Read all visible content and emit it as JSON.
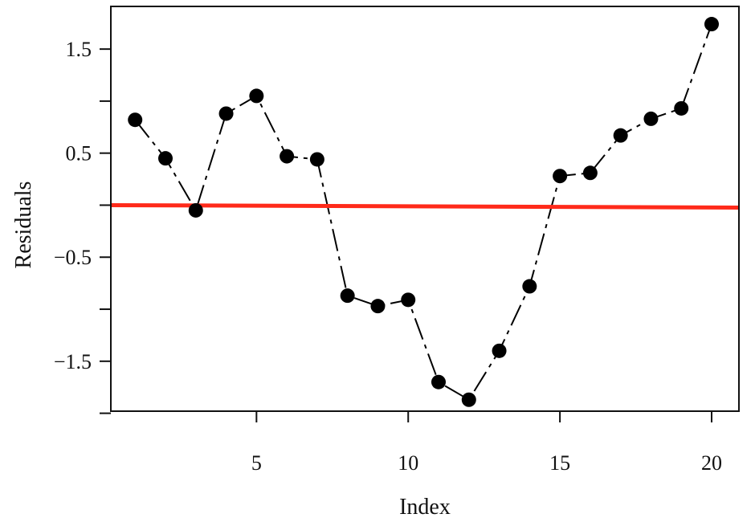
{
  "chart_data": {
    "type": "line",
    "xlabel": "Index",
    "ylabel": "Residuals",
    "xlim": [
      0.2,
      20.9
    ],
    "ylim": [
      -1.98,
      1.91
    ],
    "x_ticks": [
      5,
      10,
      15,
      20
    ],
    "x_tick_labels": [
      "5",
      "10",
      "15",
      "20"
    ],
    "y_ticks": [
      -2,
      -1.5,
      -1,
      -0.5,
      0,
      0.5,
      1,
      1.5
    ],
    "y_tick_labels": [
      "",
      "−1.5",
      "",
      "−0.5",
      "",
      "0.5",
      "",
      "1.5"
    ],
    "grid": false,
    "legend": "none",
    "series": [
      {
        "x": [
          1,
          2,
          3,
          4,
          5,
          6,
          7,
          8,
          9,
          10,
          11,
          12,
          13,
          14,
          15,
          16,
          17,
          18,
          19,
          20
        ],
        "y": [
          0.82,
          0.45,
          -0.05,
          0.88,
          1.05,
          0.47,
          0.44,
          -0.87,
          -0.97,
          -0.91,
          -1.7,
          -1.87,
          -1.4,
          -0.78,
          0.28,
          0.31,
          0.67,
          0.83,
          0.93,
          1.74
        ],
        "marker": "circle",
        "line_style": "dash-dot",
        "color": "#000000"
      }
    ],
    "reference_line": {
      "y": 0.0,
      "color": "#ff2a1a"
    }
  }
}
